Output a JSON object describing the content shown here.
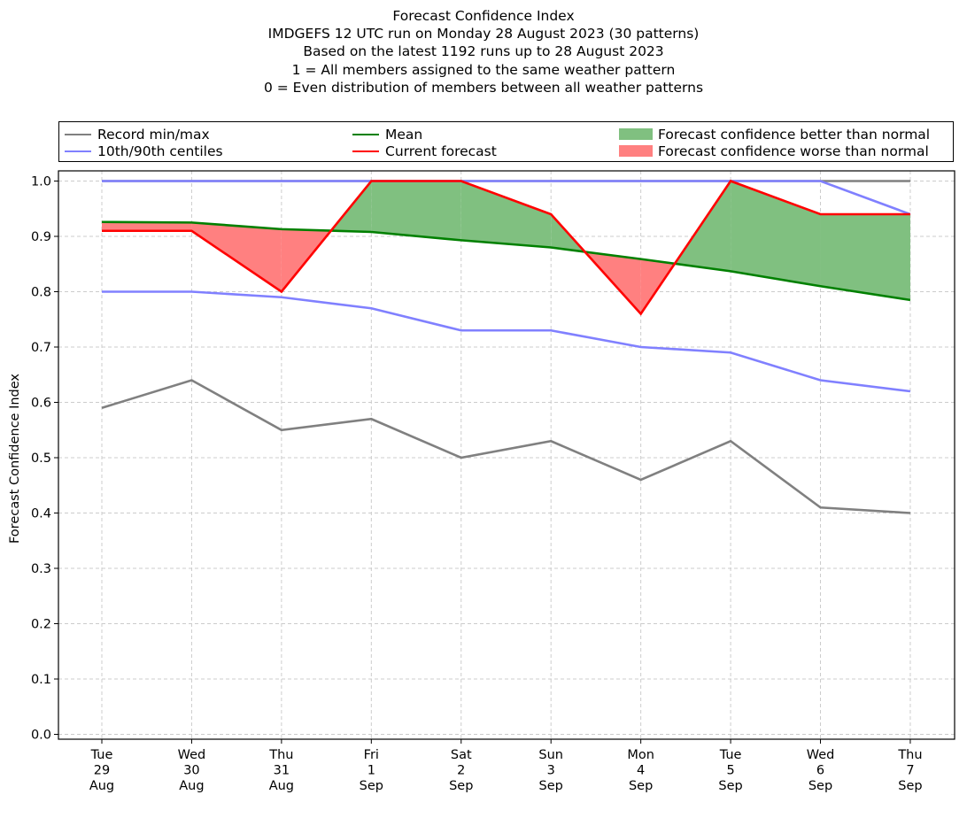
{
  "title_lines": [
    "Forecast Confidence Index",
    "IMDGEFS 12 UTC run on Monday 28 August 2023 (30 patterns)",
    "Based on the latest 1192 runs up to 28 August 2023",
    "1 = All members assigned to the same weather pattern",
    "0 = Even distribution of members between all weather patterns"
  ],
  "legend": {
    "record": "Record min/max",
    "centiles": "10th/90th centiles",
    "mean": "Mean",
    "current": "Current forecast",
    "better": "Forecast confidence better than normal",
    "worse": "Forecast confidence worse than normal"
  },
  "colors": {
    "record": "#808080",
    "centiles": "#8080ff",
    "mean": "#008000",
    "current": "#ff0000",
    "better": "#80c080",
    "worse": "#ff8080",
    "grid": "#cccccc"
  },
  "chart_data": {
    "type": "line",
    "ylabel": "Forecast Confidence Index",
    "ylim": [
      0.0,
      1.0
    ],
    "yticks": [
      "0.0",
      "0.1",
      "0.2",
      "0.3",
      "0.4",
      "0.5",
      "0.6",
      "0.7",
      "0.8",
      "0.9",
      "1.0"
    ],
    "grid": true,
    "legend_position": "top",
    "x_labels": [
      [
        "Tue",
        "29",
        "Aug"
      ],
      [
        "Wed",
        "30",
        "Aug"
      ],
      [
        "Thu",
        "31",
        "Aug"
      ],
      [
        "Fri",
        "1",
        "Sep"
      ],
      [
        "Sat",
        "2",
        "Sep"
      ],
      [
        "Sun",
        "3",
        "Sep"
      ],
      [
        "Mon",
        "4",
        "Sep"
      ],
      [
        "Tue",
        "5",
        "Sep"
      ],
      [
        "Wed",
        "6",
        "Sep"
      ],
      [
        "Thu",
        "7",
        "Sep"
      ]
    ],
    "series": [
      {
        "name": "Record min/max",
        "key": "record_min",
        "values": [
          0.59,
          0.64,
          0.55,
          0.57,
          0.5,
          0.53,
          0.46,
          0.53,
          0.41,
          0.4
        ]
      },
      {
        "name": "Record min/max",
        "key": "record_max",
        "values": [
          1.0,
          1.0,
          1.0,
          1.0,
          1.0,
          1.0,
          1.0,
          1.0,
          1.0,
          1.0
        ]
      },
      {
        "name": "10th/90th centiles",
        "key": "p10",
        "values": [
          0.8,
          0.8,
          0.79,
          0.77,
          0.73,
          0.73,
          0.7,
          0.69,
          0.64,
          0.62
        ]
      },
      {
        "name": "10th/90th centiles",
        "key": "p90",
        "values": [
          1.0,
          1.0,
          1.0,
          1.0,
          1.0,
          1.0,
          1.0,
          1.0,
          1.0,
          0.94
        ]
      },
      {
        "name": "Mean",
        "key": "mean",
        "values": [
          0.926,
          0.925,
          0.913,
          0.908,
          0.893,
          0.88,
          0.859,
          0.837,
          0.81,
          0.785
        ]
      },
      {
        "name": "Current forecast",
        "key": "current",
        "values": [
          0.91,
          0.91,
          0.8,
          1.0,
          1.0,
          0.94,
          0.76,
          1.0,
          0.94,
          0.94
        ]
      }
    ]
  }
}
